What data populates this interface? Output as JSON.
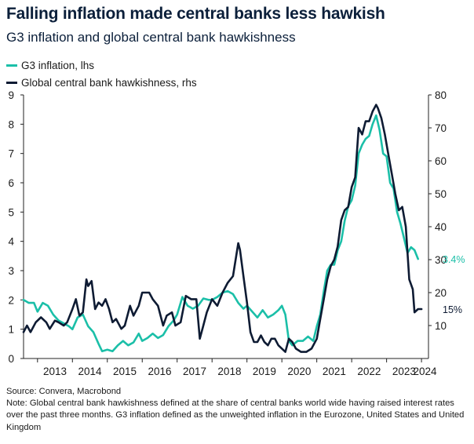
{
  "chart_data": {
    "type": "line",
    "title": "Falling inflation made central banks less hawkish",
    "subtitle": "G3 inflation and global central bank hawkishness",
    "x_range": [
      2012.6,
      2024.2
    ],
    "x_ticks": [
      "2013",
      "2014",
      "2015",
      "2016",
      "2017",
      "2018",
      "2019",
      "2020",
      "2021",
      "2022",
      "2023",
      "2024"
    ],
    "y_left": {
      "ylim": [
        0,
        9
      ],
      "ticks": [
        "0",
        "1",
        "2",
        "3",
        "4",
        "5",
        "6",
        "7",
        "8",
        "9"
      ]
    },
    "y_right": {
      "ylim": [
        0,
        80
      ],
      "ticks": [
        "10",
        "20",
        "30",
        "40",
        "50",
        "60",
        "70",
        "80"
      ]
    },
    "series": [
      {
        "name": "G3 inflation, lhs",
        "axis": "left",
        "color": "#1bbfa8",
        "end_label": "3.4%",
        "end_value": 3.4,
        "points": [
          [
            2012.6,
            2.0
          ],
          [
            2012.75,
            1.9
          ],
          [
            2012.9,
            1.9
          ],
          [
            2013.0,
            1.6
          ],
          [
            2013.15,
            1.9
          ],
          [
            2013.3,
            1.8
          ],
          [
            2013.45,
            1.5
          ],
          [
            2013.6,
            1.3
          ],
          [
            2013.75,
            1.2
          ],
          [
            2013.9,
            1.1
          ],
          [
            2014.0,
            1.0
          ],
          [
            2014.15,
            1.4
          ],
          [
            2014.3,
            1.5
          ],
          [
            2014.45,
            1.1
          ],
          [
            2014.6,
            0.9
          ],
          [
            2014.75,
            0.5
          ],
          [
            2014.85,
            0.25
          ],
          [
            2015.0,
            0.3
          ],
          [
            2015.15,
            0.25
          ],
          [
            2015.3,
            0.45
          ],
          [
            2015.45,
            0.6
          ],
          [
            2015.6,
            0.45
          ],
          [
            2015.75,
            0.55
          ],
          [
            2015.9,
            0.85
          ],
          [
            2016.0,
            0.6
          ],
          [
            2016.15,
            0.7
          ],
          [
            2016.3,
            0.85
          ],
          [
            2016.45,
            0.7
          ],
          [
            2016.6,
            0.8
          ],
          [
            2016.75,
            1.1
          ],
          [
            2016.9,
            1.3
          ],
          [
            2017.0,
            1.5
          ],
          [
            2017.15,
            2.1
          ],
          [
            2017.3,
            1.8
          ],
          [
            2017.45,
            1.7
          ],
          [
            2017.6,
            1.8
          ],
          [
            2017.75,
            2.05
          ],
          [
            2017.9,
            2.0
          ],
          [
            2018.0,
            2.0
          ],
          [
            2018.15,
            2.1
          ],
          [
            2018.3,
            2.25
          ],
          [
            2018.45,
            2.3
          ],
          [
            2018.6,
            2.2
          ],
          [
            2018.75,
            1.9
          ],
          [
            2018.9,
            1.7
          ],
          [
            2019.0,
            1.8
          ],
          [
            2019.15,
            1.6
          ],
          [
            2019.3,
            1.4
          ],
          [
            2019.45,
            1.65
          ],
          [
            2019.6,
            1.4
          ],
          [
            2019.75,
            1.5
          ],
          [
            2019.9,
            1.65
          ],
          [
            2020.0,
            1.8
          ],
          [
            2020.1,
            1.5
          ],
          [
            2020.2,
            0.6
          ],
          [
            2020.3,
            0.45
          ],
          [
            2020.45,
            0.6
          ],
          [
            2020.6,
            0.6
          ],
          [
            2020.75,
            0.75
          ],
          [
            2020.9,
            0.6
          ],
          [
            2021.0,
            1.1
          ],
          [
            2021.1,
            1.5
          ],
          [
            2021.2,
            2.3
          ],
          [
            2021.3,
            3.0
          ],
          [
            2021.4,
            3.2
          ],
          [
            2021.5,
            3.2
          ],
          [
            2021.6,
            3.7
          ],
          [
            2021.7,
            4.0
          ],
          [
            2021.8,
            4.7
          ],
          [
            2021.9,
            5.2
          ],
          [
            2022.0,
            5.4
          ],
          [
            2022.1,
            5.9
          ],
          [
            2022.2,
            7.0
          ],
          [
            2022.3,
            7.3
          ],
          [
            2022.4,
            7.5
          ],
          [
            2022.5,
            7.6
          ],
          [
            2022.6,
            8.0
          ],
          [
            2022.7,
            8.3
          ],
          [
            2022.8,
            7.8
          ],
          [
            2022.9,
            7.0
          ],
          [
            2023.0,
            6.9
          ],
          [
            2023.1,
            6.0
          ],
          [
            2023.2,
            5.8
          ],
          [
            2023.3,
            5.0
          ],
          [
            2023.4,
            4.6
          ],
          [
            2023.5,
            4.1
          ],
          [
            2023.6,
            3.6
          ],
          [
            2023.7,
            3.8
          ],
          [
            2023.8,
            3.7
          ],
          [
            2023.9,
            3.4
          ]
        ]
      },
      {
        "name": "Global central bank hawkishness, rhs",
        "axis": "right",
        "color": "#0e1b33",
        "end_label": "15%",
        "end_value": 15,
        "points": [
          [
            2012.6,
            8
          ],
          [
            2012.7,
            10
          ],
          [
            2012.8,
            8
          ],
          [
            2012.95,
            11
          ],
          [
            2013.1,
            12.5
          ],
          [
            2013.25,
            11
          ],
          [
            2013.35,
            9
          ],
          [
            2013.5,
            11.5
          ],
          [
            2013.6,
            11
          ],
          [
            2013.75,
            10
          ],
          [
            2013.85,
            11
          ],
          [
            2014.0,
            15
          ],
          [
            2014.1,
            18
          ],
          [
            2014.2,
            13
          ],
          [
            2014.3,
            14
          ],
          [
            2014.4,
            24
          ],
          [
            2014.45,
            22
          ],
          [
            2014.55,
            23.5
          ],
          [
            2014.65,
            15
          ],
          [
            2014.75,
            17
          ],
          [
            2014.85,
            16
          ],
          [
            2014.95,
            18
          ],
          [
            2015.05,
            15
          ],
          [
            2015.15,
            11
          ],
          [
            2015.25,
            12
          ],
          [
            2015.4,
            9
          ],
          [
            2015.5,
            10
          ],
          [
            2015.65,
            16
          ],
          [
            2015.75,
            13
          ],
          [
            2015.9,
            16
          ],
          [
            2016.0,
            20
          ],
          [
            2016.2,
            20
          ],
          [
            2016.3,
            18
          ],
          [
            2016.45,
            16
          ],
          [
            2016.6,
            10
          ],
          [
            2016.7,
            13
          ],
          [
            2016.85,
            14
          ],
          [
            2016.95,
            10
          ],
          [
            2017.1,
            11
          ],
          [
            2017.25,
            19
          ],
          [
            2017.4,
            18
          ],
          [
            2017.55,
            18
          ],
          [
            2017.65,
            6
          ],
          [
            2017.75,
            10
          ],
          [
            2017.85,
            14
          ],
          [
            2018.0,
            18
          ],
          [
            2018.15,
            16
          ],
          [
            2018.3,
            20
          ],
          [
            2018.45,
            23
          ],
          [
            2018.6,
            25
          ],
          [
            2018.75,
            35
          ],
          [
            2018.8,
            33
          ],
          [
            2018.9,
            25
          ],
          [
            2019.0,
            17
          ],
          [
            2019.1,
            8
          ],
          [
            2019.2,
            5
          ],
          [
            2019.3,
            5
          ],
          [
            2019.4,
            7
          ],
          [
            2019.5,
            5
          ],
          [
            2019.6,
            4
          ],
          [
            2019.7,
            6
          ],
          [
            2019.8,
            6
          ],
          [
            2019.9,
            4
          ],
          [
            2020.0,
            3
          ],
          [
            2020.1,
            2
          ],
          [
            2020.2,
            6
          ],
          [
            2020.3,
            5
          ],
          [
            2020.4,
            3
          ],
          [
            2020.55,
            2
          ],
          [
            2020.7,
            2
          ],
          [
            2020.85,
            3
          ],
          [
            2021.0,
            6
          ],
          [
            2021.1,
            12
          ],
          [
            2021.2,
            18
          ],
          [
            2021.3,
            24
          ],
          [
            2021.4,
            28
          ],
          [
            2021.5,
            30
          ],
          [
            2021.6,
            34
          ],
          [
            2021.7,
            42
          ],
          [
            2021.8,
            45
          ],
          [
            2021.9,
            46
          ],
          [
            2022.0,
            52
          ],
          [
            2022.1,
            55
          ],
          [
            2022.2,
            70
          ],
          [
            2022.3,
            68
          ],
          [
            2022.4,
            72
          ],
          [
            2022.5,
            72
          ],
          [
            2022.6,
            75
          ],
          [
            2022.7,
            77
          ],
          [
            2022.75,
            76
          ],
          [
            2022.85,
            73
          ],
          [
            2022.95,
            68
          ],
          [
            2023.05,
            62
          ],
          [
            2023.15,
            56
          ],
          [
            2023.25,
            50
          ],
          [
            2023.35,
            45
          ],
          [
            2023.45,
            46
          ],
          [
            2023.55,
            40
          ],
          [
            2023.65,
            24
          ],
          [
            2023.75,
            21
          ],
          [
            2023.8,
            14
          ],
          [
            2023.9,
            15
          ],
          [
            2024.0,
            15
          ]
        ]
      }
    ]
  },
  "footer": {
    "source": "Source: Convera, Macrobond",
    "note": "Note: Global central bank hawkishness defined at the share of central banks world wide having raised interest rates over the past three months. G3 inflation defined as the unweighted inflation in the Eurozone, United States and United Kingdom"
  }
}
